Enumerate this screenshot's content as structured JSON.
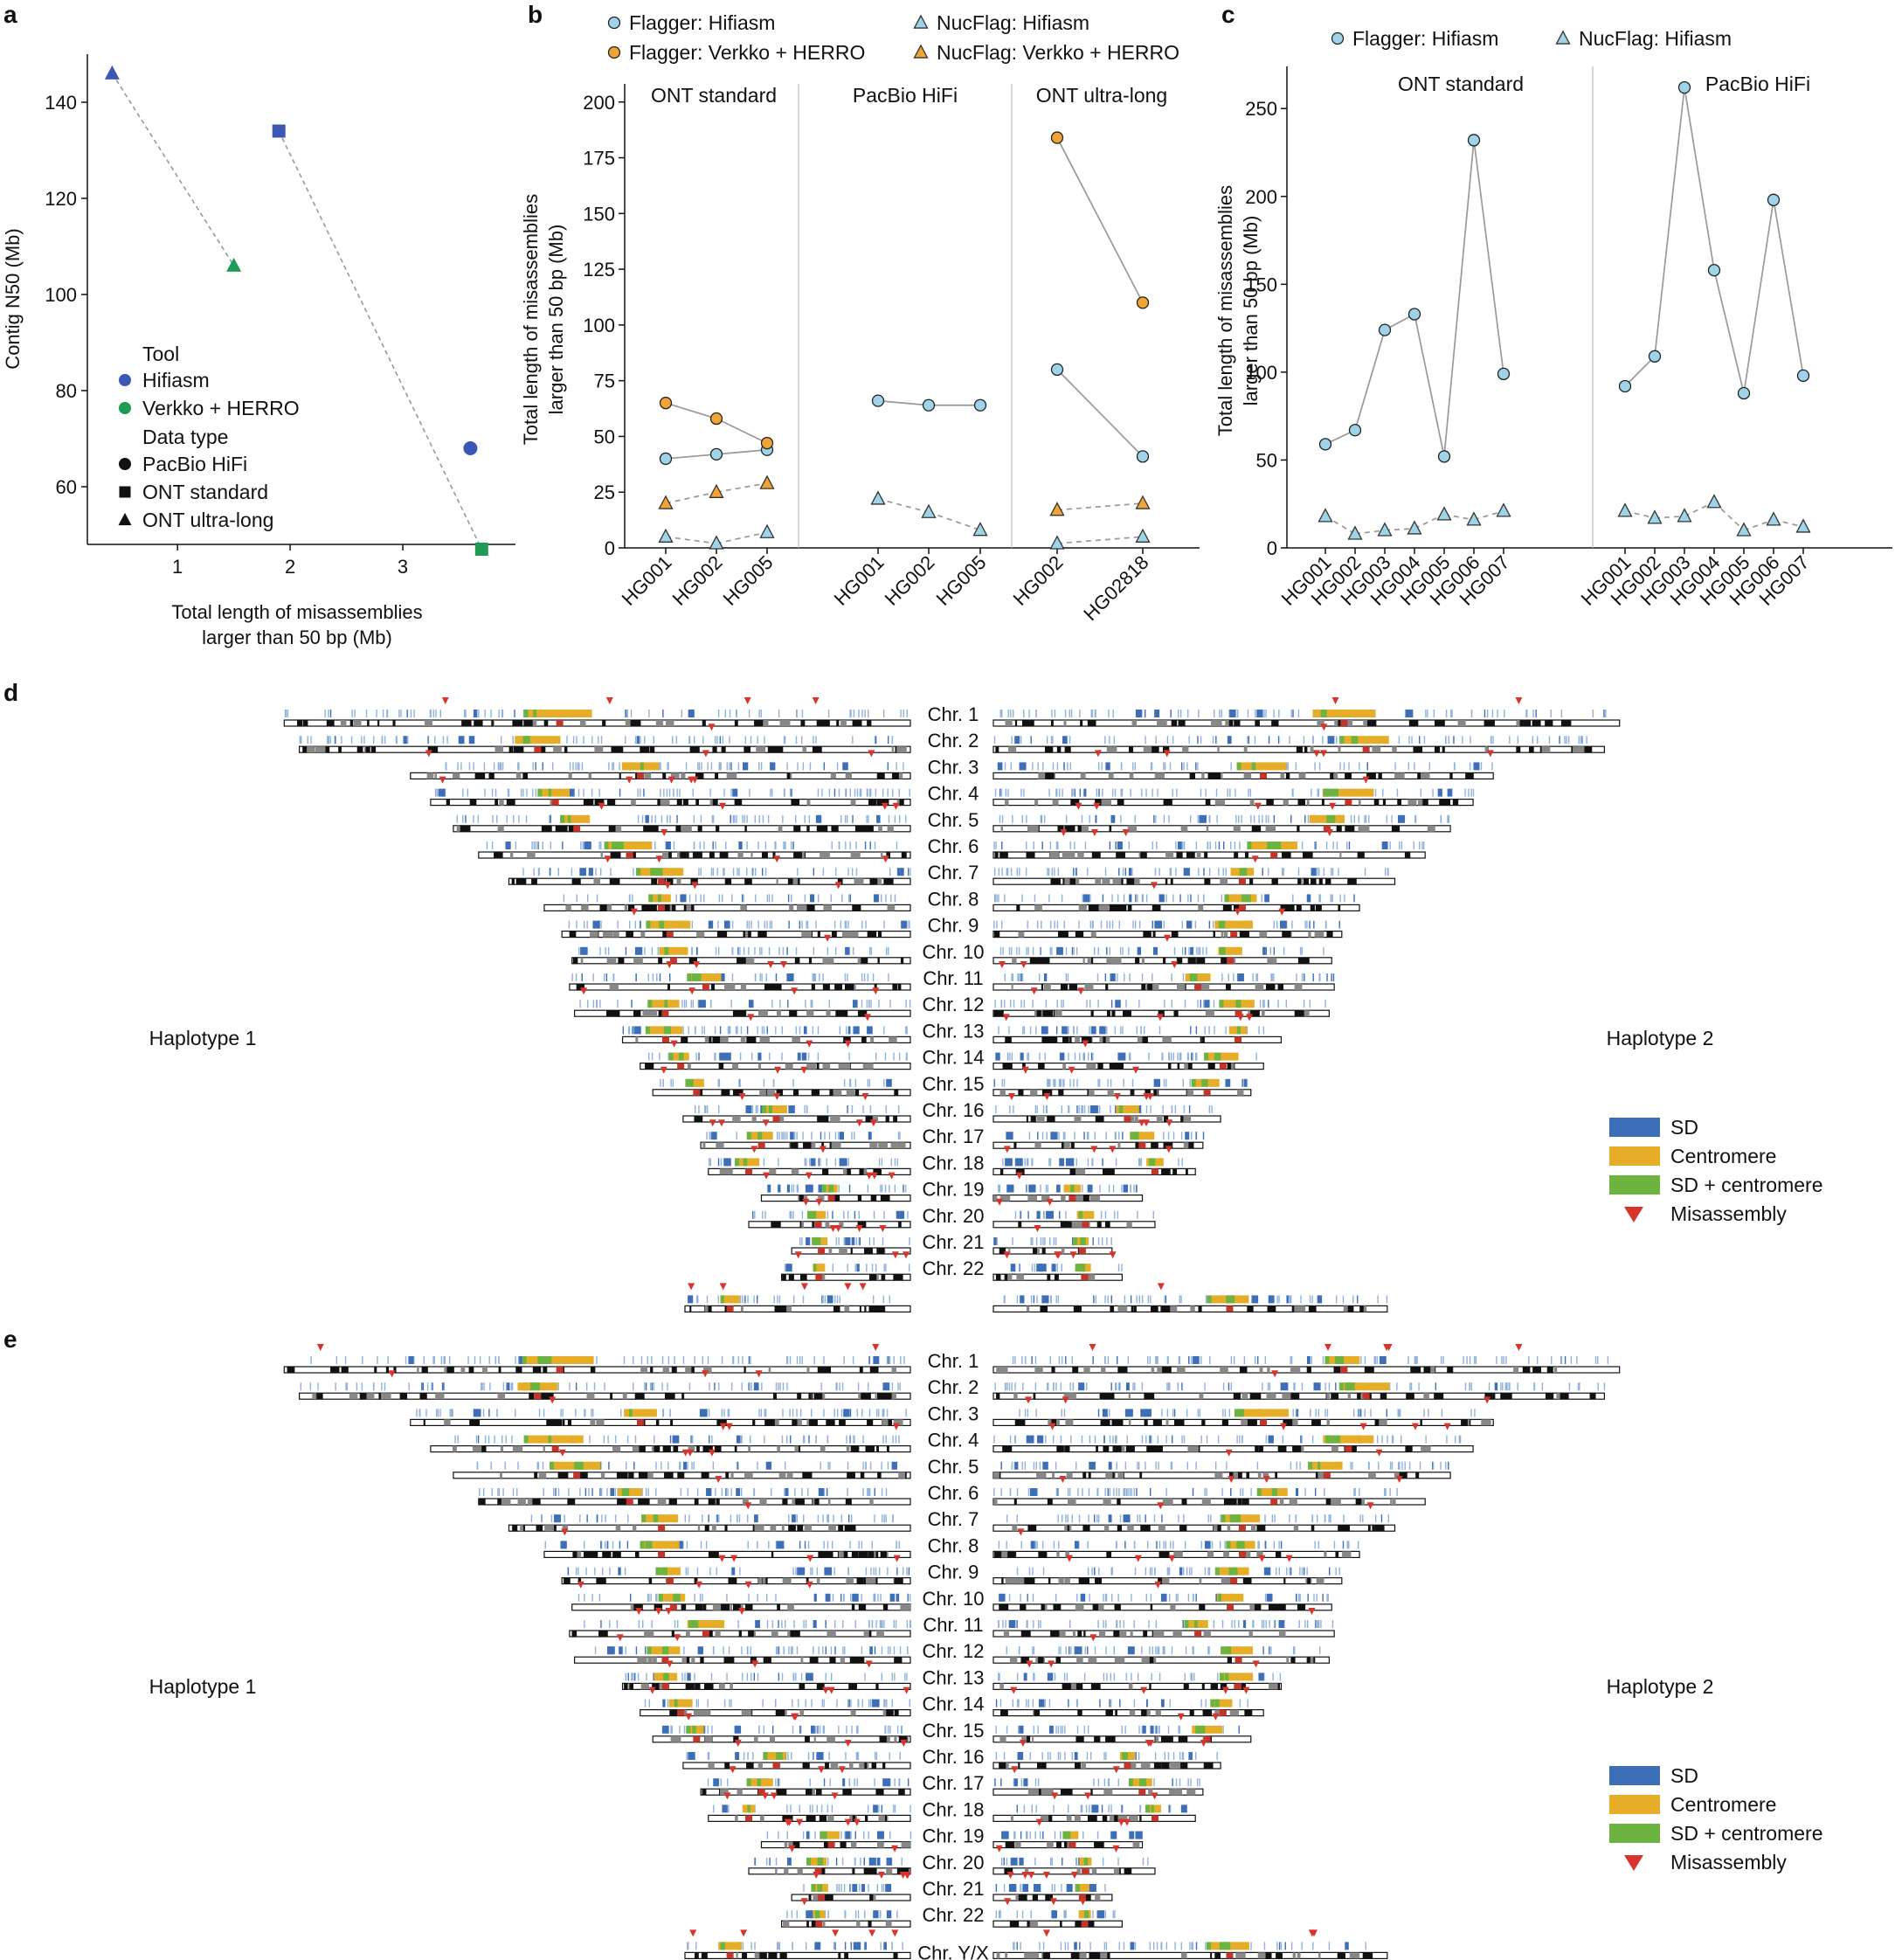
{
  "chart_data": [
    {
      "panel": "a",
      "type": "scatter",
      "xlabel": [
        "Total length of misassemblies",
        "larger than 50 bp (Mb)"
      ],
      "ylabel": "Contig N50 (Mb)",
      "xlim": [
        0.2,
        4.0
      ],
      "ylim": [
        48,
        150
      ],
      "xticks": [
        1,
        2,
        3
      ],
      "yticks": [
        60,
        80,
        100,
        120,
        140
      ],
      "colors": {
        "Hifiasm": "#3b58b4",
        "Verkko + HERRO": "#1f9b54"
      },
      "points": [
        {
          "tool": "Hifiasm",
          "data": "ONT ultra-long",
          "x": 0.42,
          "y": 146
        },
        {
          "tool": "Verkko + HERRO",
          "data": "ONT ultra-long",
          "x": 1.5,
          "y": 106
        },
        {
          "tool": "Hifiasm",
          "data": "ONT standard",
          "x": 1.9,
          "y": 134
        },
        {
          "tool": "Verkko + HERRO",
          "data": "ONT standard",
          "x": 3.7,
          "y": 47
        },
        {
          "tool": "Hifiasm",
          "data": "PacBio HiFi",
          "x": 3.6,
          "y": 68
        }
      ],
      "lines": [
        [
          0,
          1
        ],
        [
          2,
          3
        ]
      ],
      "legend": {
        "tool_title": "Tool",
        "tools": [
          "Hifiasm",
          "Verkko + HERRO"
        ],
        "data_title": "Data type",
        "data_types": [
          "PacBio HiFi",
          "ONT standard",
          "ONT ultra-long"
        ]
      }
    },
    {
      "panel": "b",
      "type": "line",
      "ylabel": [
        "Total length of misassemblies",
        "larger than 50 bp (Mb)"
      ],
      "ylim": [
        0,
        205
      ],
      "yticks": [
        0,
        25,
        50,
        75,
        100,
        125,
        150,
        175,
        200
      ],
      "legend": [
        "Flagger: Hifiasm",
        "Flagger: Verkko + HERRO",
        "NucFlag: Hifiasm",
        "NucFlag: Verkko + HERRO"
      ],
      "groups": [
        {
          "name": "ONT standard",
          "categories": [
            "HG001",
            "HG002",
            "HG005"
          ],
          "series": {
            "Flagger: Hifiasm": [
              40,
              42,
              44
            ],
            "Flagger: Verkko + HERRO": [
              65,
              58,
              47
            ],
            "NucFlag: Hifiasm": [
              5,
              2,
              7
            ],
            "NucFlag: Verkko + HERRO": [
              20,
              25,
              29
            ]
          }
        },
        {
          "name": "PacBio HiFi",
          "categories": [
            "HG001",
            "HG002",
            "HG005"
          ],
          "series": {
            "Flagger: Hifiasm": [
              66,
              64,
              64
            ],
            "NucFlag: Hifiasm": [
              22,
              16,
              8
            ]
          }
        },
        {
          "name": "ONT ultra-long",
          "categories": [
            "HG002",
            "HG02818"
          ],
          "series": {
            "Flagger: Hifiasm": [
              80,
              41
            ],
            "Flagger: Verkko + HERRO": [
              184,
              110
            ],
            "NucFlag: Hifiasm": [
              2,
              5
            ],
            "NucFlag: Verkko + HERRO": [
              17,
              20
            ]
          }
        }
      ]
    },
    {
      "panel": "c",
      "type": "line",
      "ylabel": [
        "Total length of misassemblies",
        "larger than 50 bp (Mb)"
      ],
      "ylim": [
        0,
        270
      ],
      "yticks": [
        0,
        50,
        100,
        150,
        200,
        250
      ],
      "legend": [
        "Flagger: Hifiasm",
        "NucFlag: Hifiasm"
      ],
      "groups": [
        {
          "name": "ONT standard",
          "categories": [
            "HG001",
            "HG002",
            "HG003",
            "HG004",
            "HG005",
            "HG006",
            "HG007"
          ],
          "series": {
            "Flagger: Hifiasm": [
              59,
              67,
              124,
              133,
              52,
              232,
              99
            ],
            "NucFlag: Hifiasm": [
              18,
              8,
              10,
              11,
              19,
              16,
              21
            ]
          }
        },
        {
          "name": "PacBio HiFi",
          "categories": [
            "HG001",
            "HG002",
            "HG003",
            "HG004",
            "HG005",
            "HG006",
            "HG007"
          ],
          "series": {
            "Flagger: Hifiasm": [
              92,
              109,
              262,
              158,
              88,
              198,
              98
            ],
            "NucFlag: Hifiasm": [
              21,
              17,
              18,
              26,
              10,
              16,
              12
            ]
          }
        }
      ]
    }
  ],
  "panel_labels": {
    "a": "a",
    "b": "b",
    "c": "c",
    "d": "d",
    "e": "e"
  },
  "ideogram": {
    "haplotype1": "Haplotype 1",
    "haplotype2": "Haplotype 2",
    "legend": [
      "SD",
      "Centromere",
      "SD + centromere",
      "Misassembly"
    ],
    "colors": {
      "SD": "#3d6fb8",
      "Centromere": "#e6ad28",
      "SDcen": "#6db33f",
      "Misassembly": "#d9342b",
      "rep": "#8fb2dc"
    },
    "chromosomes": [
      "Chr. 1",
      "Chr. 2",
      "Chr. 3",
      "Chr. 4",
      "Chr. 5",
      "Chr. 6",
      "Chr. 7",
      "Chr. 8",
      "Chr. 9",
      "Chr. 10",
      "Chr. 11",
      "Chr. 12",
      "Chr. 13",
      "Chr. 14",
      "Chr. 15",
      "Chr. 16",
      "Chr. 17",
      "Chr. 18",
      "Chr. 19",
      "Chr. 20",
      "Chr. 21",
      "Chr. 22"
    ],
    "sex_label": "Chr. Y/X",
    "lengths_mb": [
      248,
      242,
      198,
      190,
      181,
      171,
      159,
      145,
      138,
      134,
      135,
      133,
      114,
      107,
      102,
      90,
      83,
      80,
      59,
      64,
      47,
      51
    ],
    "sex_lengths_mb": [
      62,
      156
    ],
    "centromere_fraction": [
      0.44,
      0.39,
      0.46,
      0.26,
      0.27,
      0.35,
      0.38,
      0.32,
      0.31,
      0.3,
      0.4,
      0.27,
      0.15,
      0.15,
      0.17,
      0.41,
      0.29,
      0.2,
      0.47,
      0.43,
      0.25,
      0.29
    ],
    "sex_centromere_fraction": [
      0.2,
      0.4
    ]
  }
}
